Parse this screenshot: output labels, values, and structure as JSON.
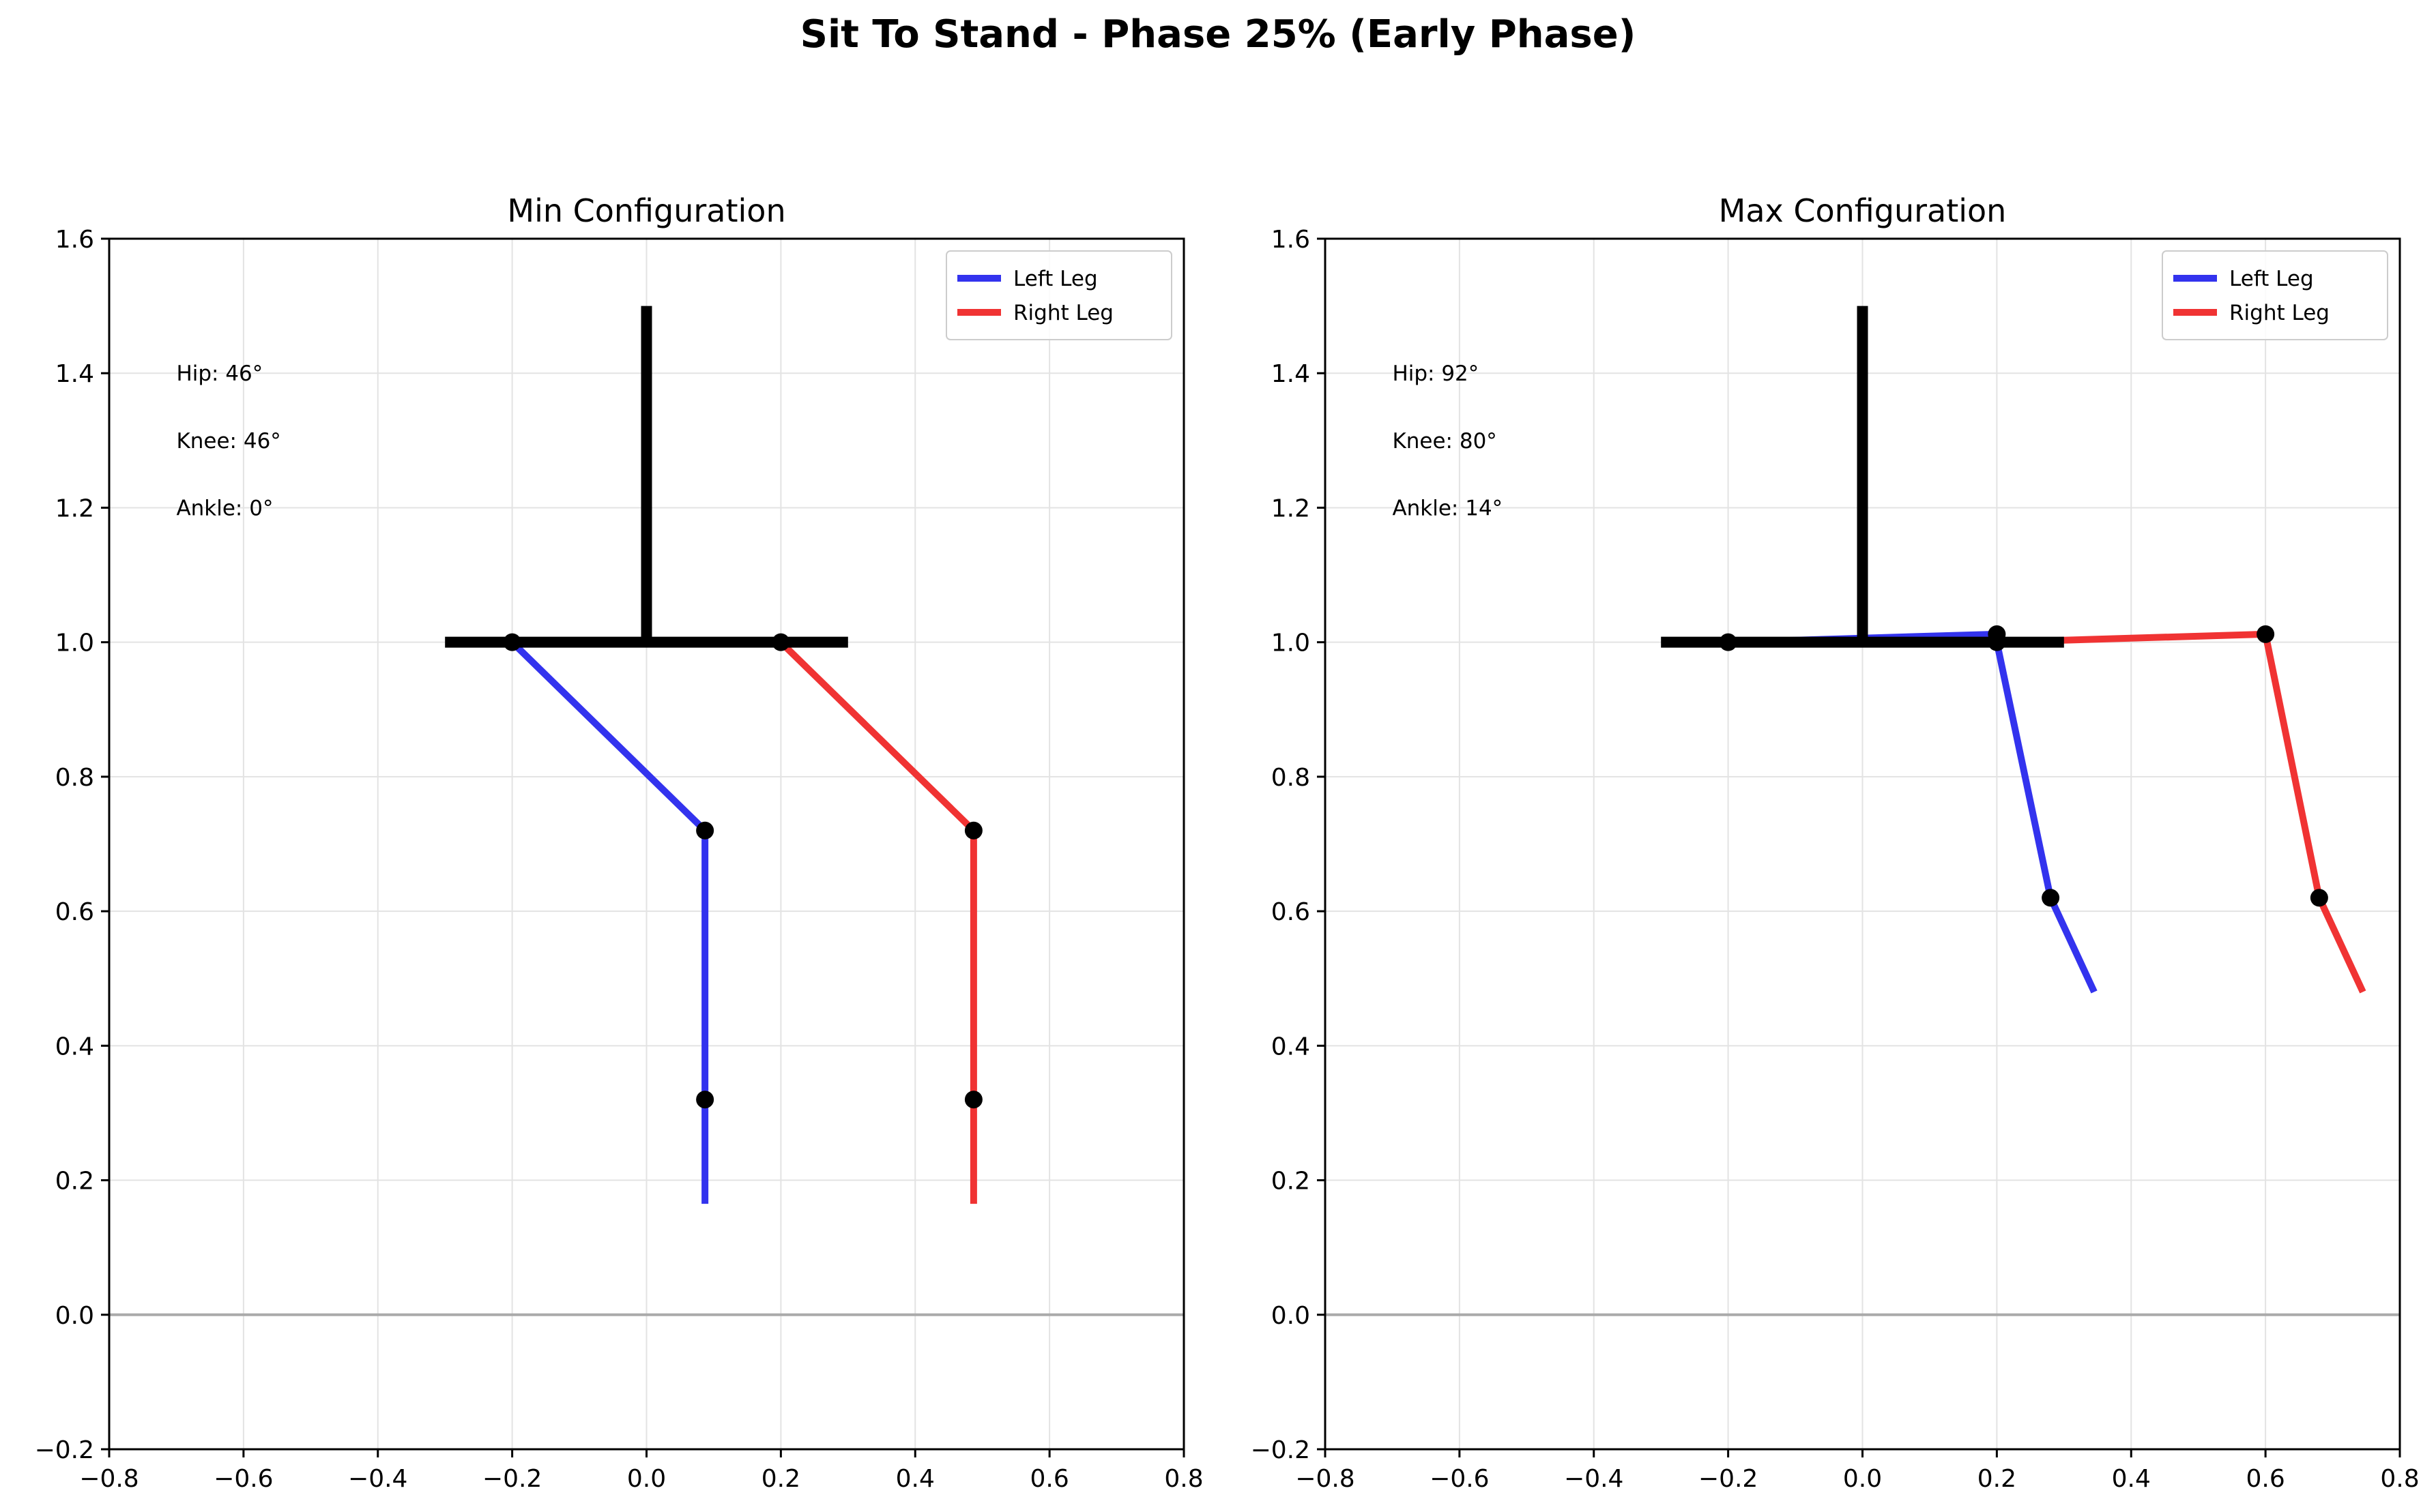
{
  "figure": {
    "title": "Sit To Stand - Phase 25% (Early Phase)"
  },
  "chart_data": [
    {
      "type": "line",
      "title": "Min Configuration",
      "xlim": [
        -0.8,
        0.8
      ],
      "ylim": [
        -0.2,
        1.6
      ],
      "xticks": [
        -0.8,
        -0.6,
        -0.4,
        -0.2,
        0.0,
        0.2,
        0.4,
        0.6,
        0.8
      ],
      "yticks": [
        -0.2,
        0.0,
        0.2,
        0.4,
        0.6,
        0.8,
        1.0,
        1.2,
        1.4,
        1.6
      ],
      "grid": true,
      "ground_y": 0.0,
      "legend": {
        "placement": "top-right",
        "entries": [
          "Left Leg",
          "Right Leg"
        ]
      },
      "annotations": [
        "Hip: 46°",
        "Knee: 46°",
        "Ankle: 0°"
      ],
      "trunk": [
        [
          0.0,
          1.0
        ],
        [
          0.0,
          1.5
        ]
      ],
      "pelvis": [
        [
          -0.3,
          1.0
        ],
        [
          0.3,
          1.0
        ]
      ],
      "series": [
        {
          "name": "Left Leg",
          "color": "#3333ee",
          "points": [
            [
              -0.2,
              1.0
            ],
            [
              0.087,
              0.72
            ],
            [
              0.087,
              0.32
            ],
            [
              0.087,
              0.165
            ]
          ],
          "joints": [
            [
              -0.2,
              1.0
            ],
            [
              0.087,
              0.72
            ],
            [
              0.087,
              0.32
            ]
          ]
        },
        {
          "name": "Right Leg",
          "color": "#f03333",
          "points": [
            [
              0.2,
              1.0
            ],
            [
              0.487,
              0.72
            ],
            [
              0.487,
              0.32
            ],
            [
              0.487,
              0.165
            ]
          ],
          "joints": [
            [
              0.2,
              1.0
            ],
            [
              0.487,
              0.72
            ],
            [
              0.487,
              0.32
            ]
          ]
        }
      ]
    },
    {
      "type": "line",
      "title": "Max Configuration",
      "xlim": [
        -0.8,
        0.8
      ],
      "ylim": [
        -0.2,
        1.6
      ],
      "xticks": [
        -0.8,
        -0.6,
        -0.4,
        -0.2,
        0.0,
        0.2,
        0.4,
        0.6,
        0.8
      ],
      "yticks": [
        -0.2,
        0.0,
        0.2,
        0.4,
        0.6,
        0.8,
        1.0,
        1.2,
        1.4,
        1.6
      ],
      "grid": true,
      "ground_y": 0.0,
      "legend": {
        "placement": "top-right",
        "entries": [
          "Left Leg",
          "Right Leg"
        ]
      },
      "annotations": [
        "Hip: 92°",
        "Knee: 80°",
        "Ankle: 14°"
      ],
      "trunk": [
        [
          0.0,
          1.0
        ],
        [
          0.0,
          1.5
        ]
      ],
      "pelvis": [
        [
          -0.3,
          1.0
        ],
        [
          0.3,
          1.0
        ]
      ],
      "series": [
        {
          "name": "Left Leg",
          "color": "#3333ee",
          "points": [
            [
              -0.2,
              1.0
            ],
            [
              0.2,
              1.012
            ],
            [
              0.2,
              1.0
            ],
            [
              0.28,
              0.62
            ],
            [
              0.345,
              0.48
            ]
          ],
          "joints": [
            [
              -0.2,
              1.0
            ],
            [
              0.2,
              1.012
            ],
            [
              0.2,
              1.0
            ],
            [
              0.28,
              0.62
            ]
          ]
        },
        {
          "name": "Right Leg",
          "color": "#f03333",
          "points": [
            [
              0.2,
              1.0
            ],
            [
              0.6,
              1.012
            ],
            [
              0.68,
              0.62
            ],
            [
              0.745,
              0.48
            ]
          ],
          "joints": [
            [
              0.6,
              1.012
            ],
            [
              0.68,
              0.62
            ]
          ]
        }
      ]
    }
  ]
}
